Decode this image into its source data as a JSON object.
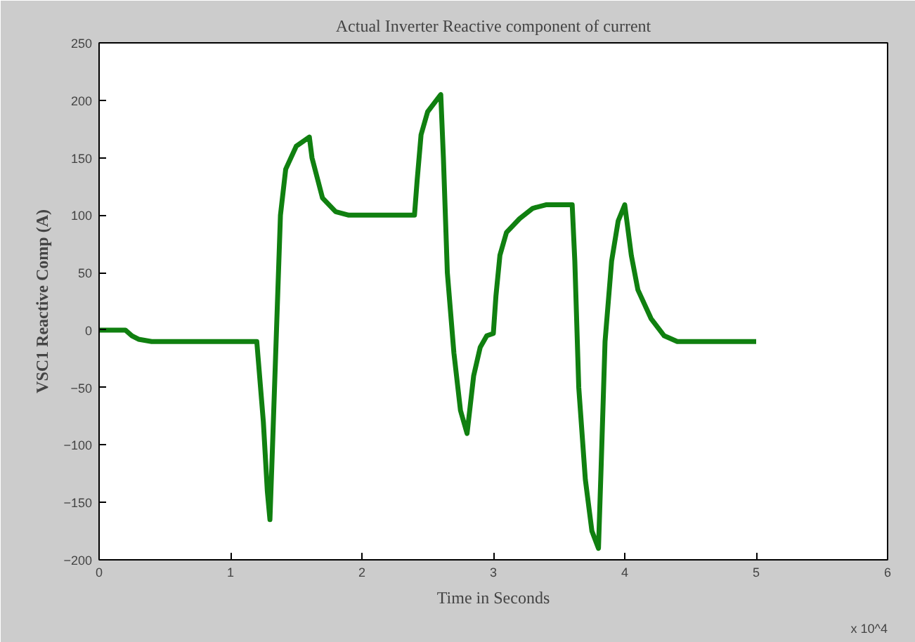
{
  "chart_data": {
    "type": "line",
    "title": "Actual Inverter Reactive component of current",
    "xlabel": "Time in Seconds",
    "ylabel": "VSC1 Reactive Comp (A)",
    "annotations": [
      "x 10^4"
    ],
    "x": [
      0,
      0.2,
      0.25,
      0.3,
      0.4,
      1.2,
      1.25,
      1.28,
      1.3,
      1.32,
      1.35,
      1.38,
      1.42,
      1.5,
      1.6,
      1.62,
      1.7,
      1.8,
      1.9,
      2.4,
      2.42,
      2.45,
      2.5,
      2.6,
      2.62,
      2.65,
      2.7,
      2.75,
      2.8,
      2.85,
      2.9,
      2.95,
      3.0,
      3.02,
      3.05,
      3.1,
      3.2,
      3.3,
      3.4,
      3.6,
      3.62,
      3.65,
      3.7,
      3.75,
      3.8,
      3.82,
      3.85,
      3.9,
      3.95,
      4.0,
      4.05,
      4.1,
      4.2,
      4.3,
      4.4,
      5.0
    ],
    "series": [
      {
        "color": "#108010",
        "values": [
          0,
          0,
          -5,
          -8,
          -10,
          -10,
          -80,
          -140,
          -165,
          -100,
          0,
          100,
          140,
          160,
          168,
          150,
          115,
          103,
          100,
          100,
          130,
          170,
          190,
          205,
          150,
          50,
          -20,
          -70,
          -90,
          -40,
          -15,
          -5,
          -3,
          30,
          65,
          85,
          97,
          106,
          109,
          109,
          60,
          -50,
          -130,
          -175,
          -190,
          -120,
          -10,
          60,
          95,
          109,
          65,
          35,
          10,
          -5,
          -10,
          -10
        ]
      }
    ],
    "xlim": [
      0,
      6
    ],
    "ylim": [
      -200,
      250
    ],
    "xticks": [
      0,
      1,
      2,
      3,
      4,
      5,
      6
    ],
    "yticks": [
      -200,
      -150,
      -100,
      -50,
      0,
      50,
      100,
      150,
      200,
      250
    ],
    "grid": false,
    "line_style": "solid",
    "marker": "none"
  }
}
